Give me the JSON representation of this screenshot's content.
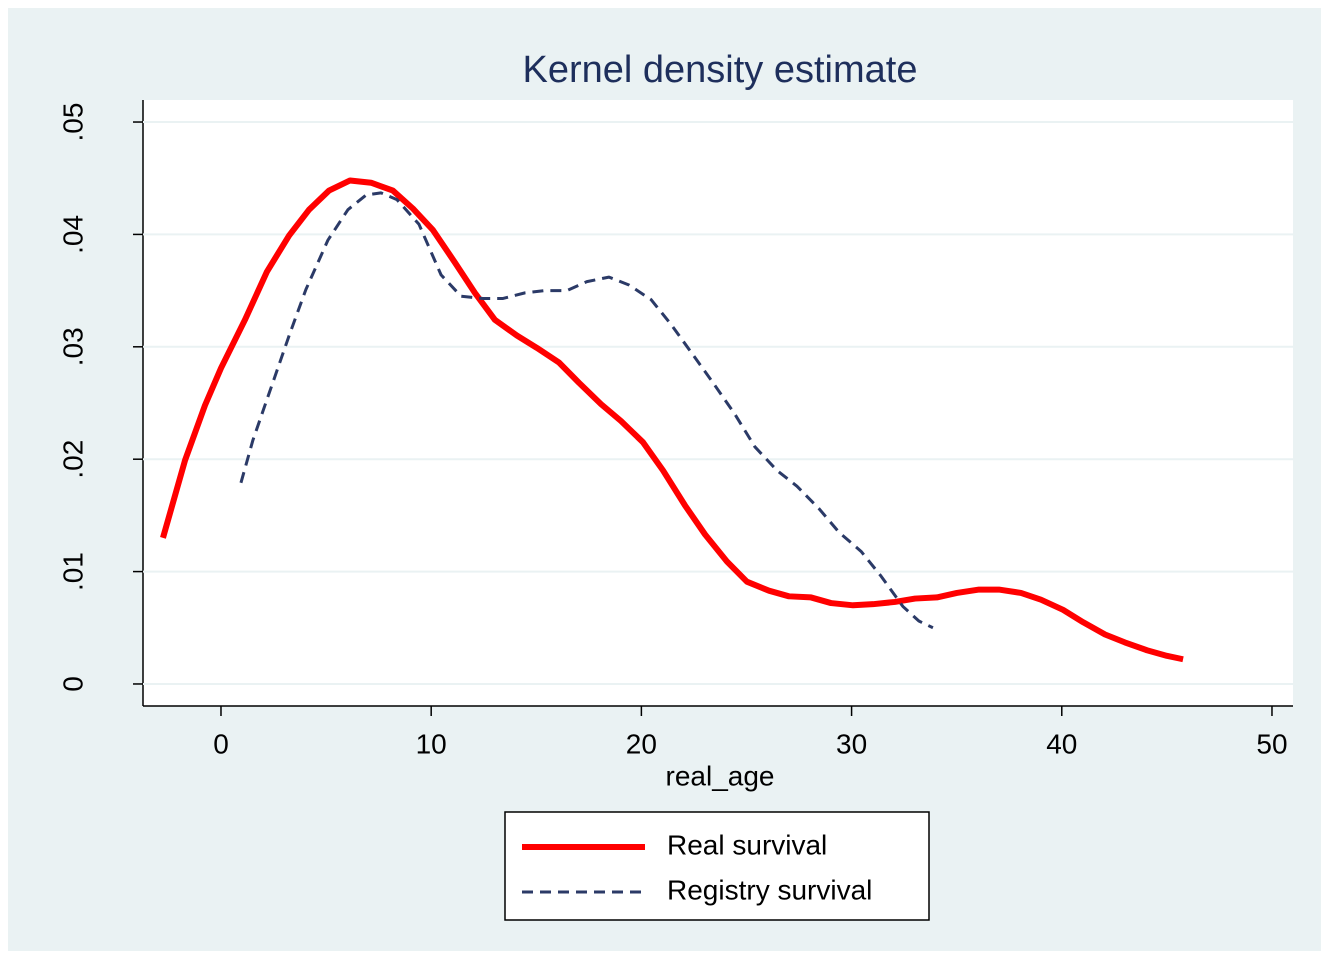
{
  "chart_data": {
    "type": "line",
    "title": "Kernel density estimate",
    "x_label": "real_age",
    "xlim": [
      -3.71,
      51.0
    ],
    "ylim": [
      -0.00196,
      0.05196
    ],
    "xticks": [
      0,
      10,
      20,
      30,
      40,
      50
    ],
    "yticks": [
      0,
      {
        "value": 0.01,
        "label": ".01"
      },
      {
        "value": 0.02,
        "label": ".02"
      },
      {
        "value": 0.03,
        "label": ".03"
      },
      {
        "value": 0.04,
        "label": ".04"
      },
      {
        "value": 0.05,
        "label": ".05"
      }
    ],
    "grid": true,
    "series": [
      {
        "name": "Real survival",
        "color": "#ff0000",
        "dash": "solid",
        "x": [
          -2.76,
          -1.71,
          -0.76,
          0,
          1.14,
          2.19,
          3.24,
          4.19,
          5.14,
          6.14,
          7.14,
          8.18,
          9.13,
          10.08,
          11.13,
          12.08,
          13.03,
          14.08,
          15.03,
          16.08,
          17.03,
          18.08,
          19.03,
          20.08,
          21.03,
          22.07,
          23.03,
          24.07,
          25.02,
          26.07,
          27.02,
          28.07,
          29.02,
          30.07,
          31.02,
          32.06,
          33.02,
          34.06,
          35.01,
          36.06,
          37.01,
          38.06,
          39.01,
          40.06,
          41.01,
          42.06,
          43.0,
          44.05,
          45.0,
          45.77
        ],
        "values": [
          0.013,
          0.0199,
          0.0248,
          0.0281,
          0.0324,
          0.0367,
          0.0399,
          0.0422,
          0.0439,
          0.0448,
          0.0446,
          0.0439,
          0.0423,
          0.0404,
          0.0375,
          0.0348,
          0.0324,
          0.031,
          0.0299,
          0.0286,
          0.0268,
          0.0249,
          0.0234,
          0.0215,
          0.019,
          0.0159,
          0.0133,
          0.0109,
          0.0091,
          0.0083,
          0.0078,
          0.0077,
          0.0072,
          0.007,
          0.0071,
          0.0073,
          0.0076,
          0.0077,
          0.0081,
          0.0084,
          0.0084,
          0.0081,
          0.0075,
          0.0066,
          0.0055,
          0.0044,
          0.0037,
          0.003,
          0.0025,
          0.0022
        ]
      },
      {
        "name": "Registry survival",
        "color": "#2b3a67",
        "dash": "dashed",
        "x": [
          0.95,
          1.52,
          2.24,
          3.28,
          4.04,
          5.09,
          6.04,
          6.9,
          7.61,
          8.37,
          9.42,
          10.47,
          11.42,
          12.46,
          13.42,
          14.46,
          15.41,
          16.46,
          17.41,
          18.46,
          19.41,
          20.46,
          21.41,
          22.45,
          23.41,
          24.45,
          25.4,
          26.45,
          27.4,
          28.45,
          29.4,
          30.45,
          31.4,
          32.44,
          33.2,
          33.87
        ],
        "values": [
          0.0179,
          0.0217,
          0.0256,
          0.0312,
          0.0351,
          0.0395,
          0.0422,
          0.0435,
          0.0437,
          0.0431,
          0.0409,
          0.0364,
          0.0345,
          0.0343,
          0.0343,
          0.0348,
          0.035,
          0.035,
          0.0358,
          0.0362,
          0.0355,
          0.0342,
          0.032,
          0.0293,
          0.0268,
          0.024,
          0.0211,
          0.019,
          0.0176,
          0.0156,
          0.0135,
          0.0118,
          0.0096,
          0.0069,
          0.0056,
          0.005
        ]
      }
    ]
  }
}
